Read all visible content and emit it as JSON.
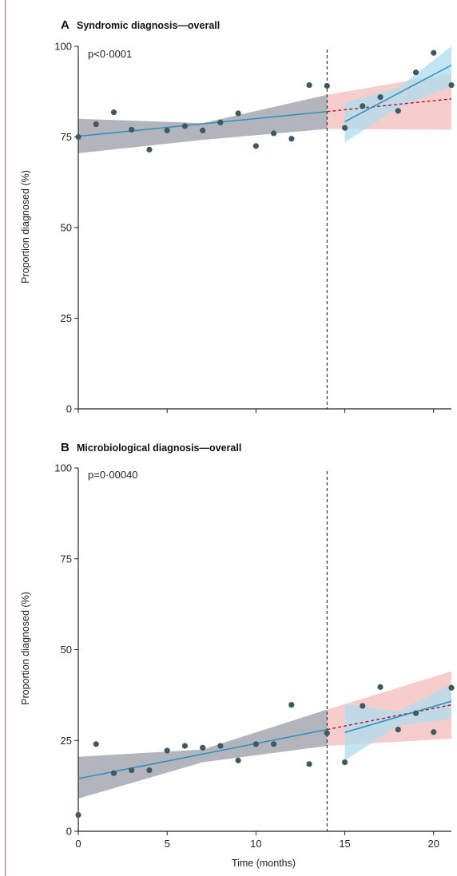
{
  "colors": {
    "frame": "#c05a7a",
    "point": "#3f5962",
    "fit_line": "#2a8fc4",
    "ci_blue": "#aedcec",
    "ci_pink": "#f3b8b6",
    "ci_overlap": "#b3a6ab",
    "counterfactual": "#b5123a",
    "axis": "#222222"
  },
  "xaxis": {
    "label": "Time (months)",
    "ticks": [
      0,
      5,
      10,
      15,
      20
    ],
    "lim": [
      0,
      21
    ]
  },
  "yaxis": {
    "label": "Proportion diagnosed (%)",
    "ticks": [
      0,
      25,
      50,
      75,
      100
    ],
    "lim": [
      0,
      100
    ]
  },
  "intervention_month": 14,
  "chart_data": [
    {
      "type": "scatter",
      "panel": "A",
      "title": "Syndromic diagnosis—overall",
      "annotation": "p<0·0001",
      "xlabel": "",
      "ylabel": "Proportion diagnosed (%)",
      "xlim": [
        0,
        21
      ],
      "ylim": [
        0,
        100
      ],
      "points": {
        "x": [
          0,
          1,
          2,
          3,
          4,
          5,
          6,
          7,
          8,
          9,
          10,
          11,
          12,
          13,
          14,
          15,
          16,
          17,
          18,
          19,
          20,
          21
        ],
        "y": [
          75.0,
          78.5,
          81.8,
          77.0,
          71.5,
          76.8,
          78.0,
          76.8,
          79.0,
          81.5,
          72.5,
          76.0,
          74.5,
          89.3,
          89.1,
          77.5,
          83.5,
          86.0,
          82.2,
          92.8,
          98.2,
          89.3
        ]
      },
      "pre_fit": {
        "x": [
          0,
          14
        ],
        "y": [
          75.2,
          82.0
        ]
      },
      "post_fit": {
        "x": [
          15,
          21
        ],
        "y": [
          79.2,
          94.8
        ]
      },
      "counterfactual": {
        "x": [
          14,
          21
        ],
        "y": [
          82.0,
          85.5
        ]
      },
      "pre_ci": {
        "x": [
          0,
          7,
          14
        ],
        "lower": [
          70.5,
          74.2,
          77.2
        ],
        "upper": [
          80.0,
          78.8,
          86.6
        ]
      },
      "counterfactual_ci": {
        "x": [
          14,
          21
        ],
        "lower": [
          77.2,
          77.0
        ],
        "upper": [
          86.6,
          92.5
        ]
      },
      "post_ci": {
        "x": [
          15,
          18,
          21
        ],
        "lower": [
          73.5,
          83.0,
          89.0
        ],
        "upper": [
          84.5,
          88.5,
          100.0
        ]
      }
    },
    {
      "type": "scatter",
      "panel": "B",
      "title": "Microbiological diagnosis—overall",
      "annotation": "p=0·00040",
      "xlabel": "Time (months)",
      "ylabel": "Proportion diagnosed (%)",
      "xlim": [
        0,
        21
      ],
      "ylim": [
        0,
        100
      ],
      "points": {
        "x": [
          0,
          1,
          2,
          3,
          4,
          5,
          6,
          7,
          8,
          9,
          10,
          11,
          12,
          13,
          14,
          15,
          16,
          17,
          18,
          19,
          20,
          21
        ],
        "y": [
          4.5,
          24.0,
          16.0,
          16.8,
          16.8,
          22.2,
          23.5,
          23.0,
          23.5,
          19.5,
          24.0,
          24.0,
          34.8,
          18.5,
          27.0,
          19.0,
          34.5,
          39.7,
          28.0,
          32.5,
          27.3,
          39.5
        ]
      },
      "pre_fit": {
        "x": [
          0,
          14
        ],
        "y": [
          14.5,
          28.0
        ]
      },
      "post_fit": {
        "x": [
          15,
          21
        ],
        "y": [
          27.2,
          35.8
        ]
      },
      "counterfactual": {
        "x": [
          14,
          21
        ],
        "y": [
          28.0,
          34.8
        ]
      },
      "pre_ci": {
        "x": [
          0,
          7,
          14
        ],
        "lower": [
          9.0,
          19.0,
          23.5
        ],
        "upper": [
          20.5,
          22.5,
          33.5
        ]
      },
      "counterfactual_ci": {
        "x": [
          14,
          21
        ],
        "lower": [
          23.5,
          25.5
        ],
        "upper": [
          33.5,
          44.0
        ]
      },
      "post_ci": {
        "x": [
          15,
          18,
          21
        ],
        "lower": [
          19.5,
          29.0,
          31.0
        ],
        "upper": [
          35.0,
          33.0,
          40.5
        ]
      }
    }
  ]
}
